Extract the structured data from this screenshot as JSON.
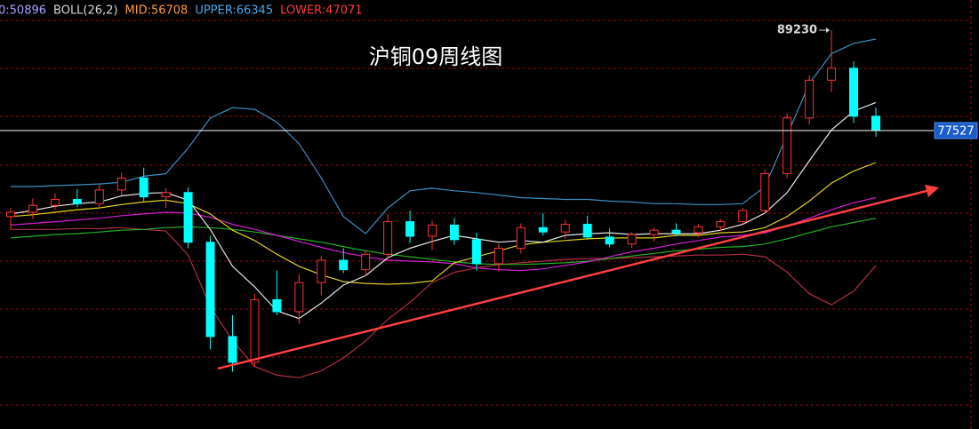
{
  "chart_data": {
    "type": "candlestick",
    "title": "沪铜09周线图",
    "indicator_labels": [
      {
        "text": "0:50896",
        "color": "#a8a0ff"
      },
      {
        "text": "BOLL(26,2)",
        "color": "#d8d8d8"
      },
      {
        "text": "MID:56708",
        "color": "#ff9a3c"
      },
      {
        "text": "UPPER:66345",
        "color": "#4aa8e8"
      },
      {
        "text": "LOWER:47071",
        "color": "#ff3c3c"
      }
    ],
    "ylim": [
      42717,
      92755
    ],
    "up_color": "#ff3232",
    "down_color": "#00ffff",
    "open": [
      67500,
      68000,
      68800,
      69500,
      69000,
      70600,
      72000,
      69800,
      70300,
      64500,
      53500,
      50500,
      57800,
      56400,
      59800,
      62400,
      61300,
      63100,
      66900,
      65200,
      66500,
      64800,
      62000,
      63800,
      66200,
      65700,
      66600,
      65100,
      64300,
      65400,
      65900,
      65600,
      66300,
      66900,
      68200,
      72500,
      79000,
      83400,
      84800,
      79200
    ],
    "high": [
      68500,
      69600,
      70200,
      70700,
      71200,
      72600,
      73200,
      70800,
      70900,
      65200,
      56000,
      58500,
      61200,
      60800,
      62900,
      63800,
      63600,
      67800,
      68200,
      67000,
      67300,
      65600,
      64300,
      66700,
      67900,
      67100,
      67600,
      66100,
      65700,
      66200,
      66700,
      66600,
      67200,
      68500,
      73000,
      79500,
      84000,
      89230,
      85600,
      80200
    ],
    "low": [
      66000,
      67200,
      68300,
      68600,
      68500,
      70000,
      69300,
      68500,
      63800,
      52000,
      49400,
      50000,
      56000,
      55000,
      58300,
      60900,
      60600,
      62500,
      64400,
      63600,
      64200,
      61200,
      61100,
      63200,
      65300,
      64900,
      64800,
      63900,
      63800,
      64600,
      65200,
      65100,
      65800,
      66500,
      67800,
      72000,
      78200,
      82000,
      78400,
      76800
    ],
    "close": [
      68000,
      68800,
      69500,
      69000,
      70600,
      72000,
      69800,
      70300,
      64500,
      53500,
      50500,
      57800,
      56400,
      59800,
      62400,
      61300,
      63100,
      66900,
      65200,
      66500,
      64800,
      62000,
      63800,
      66200,
      65700,
      66600,
      65100,
      64300,
      65400,
      65900,
      65600,
      66300,
      66900,
      68200,
      72500,
      79000,
      83400,
      84800,
      79200,
      77527
    ],
    "overlays": [
      {
        "color": "#3a8fc0",
        "values": [
          71000,
          71000,
          71100,
          71200,
          71300,
          71500,
          72200,
          72500,
          75500,
          79000,
          80200,
          80000,
          78500,
          76000,
          72000,
          67500,
          65500,
          68500,
          70500,
          70800,
          70500,
          70300,
          70000,
          69700,
          69600,
          69500,
          69500,
          69300,
          69200,
          69000,
          69000,
          68900,
          68900,
          69000,
          71000,
          77000,
          83000,
          86500,
          87700,
          88200
        ]
      },
      {
        "color": "#b03040",
        "values": [
          66000,
          66000,
          66000,
          66100,
          66100,
          66200,
          66000,
          65800,
          63000,
          57000,
          53000,
          50000,
          49000,
          48700,
          49500,
          51000,
          53000,
          55500,
          57500,
          59800,
          61000,
          61500,
          61900,
          62100,
          62300,
          62500,
          62600,
          62600,
          62700,
          62800,
          62900,
          63000,
          63000,
          63100,
          62800,
          61000,
          58500,
          57200,
          58800,
          61800
        ]
      },
      {
        "color": "#22b022",
        "values": [
          65000,
          65200,
          65400,
          65500,
          65700,
          65900,
          66000,
          66200,
          66300,
          66200,
          66000,
          65700,
          65300,
          64900,
          64500,
          64000,
          63500,
          63100,
          62800,
          62500,
          62200,
          62000,
          61900,
          61900,
          62000,
          62100,
          62300,
          62600,
          62900,
          63200,
          63500,
          63700,
          63900,
          64000,
          64300,
          64900,
          65600,
          66300,
          66800,
          67300
        ]
      },
      {
        "color": "#d020d0",
        "values": [
          66500,
          66700,
          66900,
          67100,
          67300,
          67600,
          67800,
          68000,
          67900,
          67400,
          66600,
          66000,
          65300,
          64600,
          63900,
          63300,
          62800,
          62400,
          62300,
          62200,
          62000,
          61500,
          61300,
          61200,
          61400,
          61800,
          62200,
          62800,
          63400,
          63800,
          64300,
          64700,
          65100,
          65300,
          65600,
          66400,
          67300,
          68300,
          69100,
          69700
        ]
      },
      {
        "color": "#e0d020",
        "values": [
          67500,
          67700,
          68000,
          68300,
          68500,
          68900,
          69200,
          69400,
          69000,
          67800,
          65900,
          64700,
          63100,
          61700,
          60700,
          59900,
          59700,
          59600,
          59700,
          60000,
          62100,
          62800,
          63500,
          64200,
          64500,
          64700,
          64900,
          65000,
          65000,
          65000,
          65300,
          65300,
          65600,
          65700,
          66200,
          67500,
          69300,
          71400,
          72800,
          73800
        ]
      },
      {
        "color": "#e8e8e8",
        "values": [
          67800,
          68200,
          68700,
          69000,
          69200,
          69900,
          70200,
          70300,
          69400,
          66000,
          61700,
          59300,
          56500,
          55600,
          57400,
          59500,
          60600,
          62700,
          63800,
          64600,
          65300,
          64900,
          64500,
          64700,
          64500,
          65300,
          65500,
          65600,
          65400,
          65500,
          65500,
          65500,
          65900,
          66600,
          67900,
          70300,
          74000,
          77600,
          79800,
          80800
        ]
      }
    ]
  }
}
